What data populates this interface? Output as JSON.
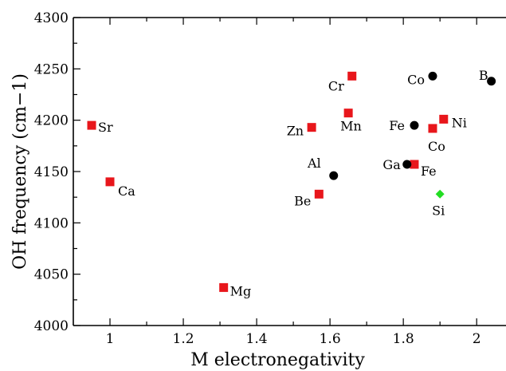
{
  "chart_data": {
    "type": "scatter",
    "title": "",
    "xlabel": "M electronegativity",
    "ylabel": "OH frequency (cm−1)",
    "xlim": [
      0.9,
      2.08
    ],
    "ylim": [
      4000,
      4300
    ],
    "xticks": [
      1,
      1.2,
      1.4,
      1.6,
      1.8,
      2
    ],
    "xtick_labels": [
      "1",
      "1.2",
      "1.4",
      "1.6",
      "1.8",
      "2"
    ],
    "yticks": [
      4000,
      4050,
      4100,
      4150,
      4200,
      4250,
      4300
    ],
    "ytick_labels": [
      "4000",
      "4050",
      "4100",
      "4150",
      "4200",
      "4250",
      "4300"
    ],
    "grid": false,
    "legend": "none",
    "series": [
      {
        "marker": "square",
        "color": "#e8161b",
        "points": [
          {
            "label": "Sr",
            "x": 0.95,
            "y": 4195
          },
          {
            "label": "Ca",
            "x": 1.0,
            "y": 4140
          },
          {
            "label": "Mg",
            "x": 1.31,
            "y": 4037
          },
          {
            "label": "Be",
            "x": 1.57,
            "y": 4128
          },
          {
            "label": "Zn",
            "x": 1.55,
            "y": 4193
          },
          {
            "label": "Mn",
            "x": 1.65,
            "y": 4207
          },
          {
            "label": "Cr",
            "x": 1.66,
            "y": 4243
          },
          {
            "label": "Fe",
            "x": 1.83,
            "y": 4157
          },
          {
            "label": "Co",
            "x": 1.88,
            "y": 4192
          },
          {
            "label": "Ni",
            "x": 1.91,
            "y": 4201
          }
        ]
      },
      {
        "marker": "circle",
        "color": "#000000",
        "points": [
          {
            "label": "Al",
            "x": 1.61,
            "y": 4146
          },
          {
            "label": "Ga",
            "x": 1.81,
            "y": 4157
          },
          {
            "label": "Fe",
            "x": 1.83,
            "y": 4195
          },
          {
            "label": "Co",
            "x": 1.88,
            "y": 4243
          },
          {
            "label": "B",
            "x": 2.04,
            "y": 4238
          }
        ]
      },
      {
        "marker": "diamond",
        "color": "#22dd22",
        "points": [
          {
            "label": "Si",
            "x": 1.9,
            "y": 4128
          }
        ]
      }
    ]
  }
}
